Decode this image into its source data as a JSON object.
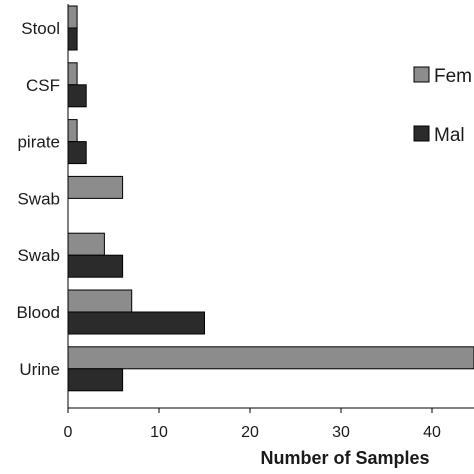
{
  "chart_data": {
    "type": "bar",
    "orientation": "horizontal",
    "categories": [
      "Stool",
      "CSF",
      "pirate",
      "Swab",
      "Swab",
      "Blood",
      "Urine"
    ],
    "series": [
      {
        "name": "Fem",
        "color": "#8c8c8c",
        "values": [
          1,
          1,
          1,
          6,
          4,
          7,
          48
        ]
      },
      {
        "name": "Mal",
        "color": "#2b2b2b",
        "values": [
          1,
          2,
          2,
          0,
          6,
          15,
          6
        ]
      }
    ],
    "x_ticks": [
      0,
      10,
      20,
      30,
      40
    ],
    "xlim": [
      0,
      45
    ],
    "xlabel": "Number of Samples",
    "ylabel": "",
    "title": "",
    "grid": false,
    "legend_position": "right"
  }
}
